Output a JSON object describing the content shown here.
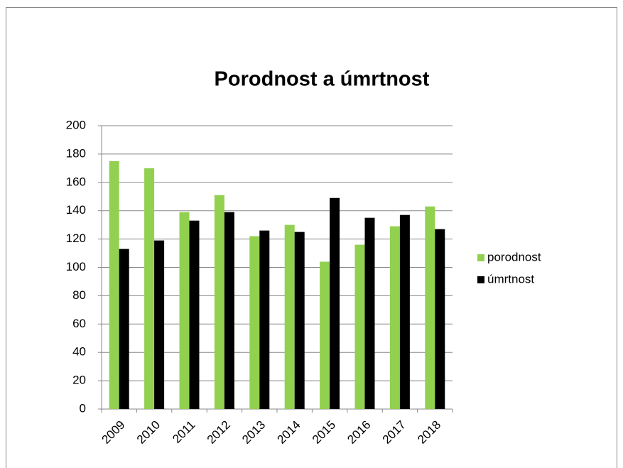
{
  "chart_data": {
    "type": "bar",
    "title": "Porodnost a  úmrtnost",
    "categories": [
      "2009",
      "2010",
      "2011",
      "2012",
      "2013",
      "2014",
      "2015",
      "2016",
      "2017",
      "2018"
    ],
    "series": [
      {
        "name": "porodnost",
        "color": "#92d050",
        "values": [
          175,
          170,
          139,
          151,
          122,
          130,
          104,
          116,
          129,
          143
        ]
      },
      {
        "name": "úmrtnost",
        "color": "#000000",
        "values": [
          113,
          119,
          133,
          139,
          126,
          125,
          149,
          135,
          137,
          127
        ]
      }
    ],
    "ylim": [
      0,
      200
    ],
    "yticks": [
      0,
      20,
      40,
      60,
      80,
      100,
      120,
      140,
      160,
      180,
      200
    ],
    "grid": true,
    "legend": "right"
  }
}
